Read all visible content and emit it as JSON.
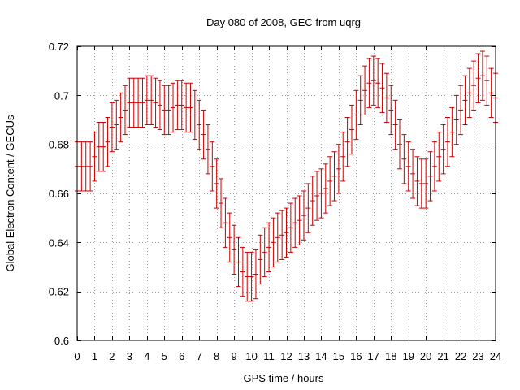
{
  "chart_data": {
    "type": "scatter",
    "title": "Day 080 of 2008, GEC from uqrg",
    "xlabel": "GPS time / hours",
    "ylabel": "Global Electron Content / GECUs",
    "xlim": [
      0,
      24
    ],
    "ylim": [
      0.6,
      0.72
    ],
    "xticks": [
      0,
      1,
      2,
      3,
      4,
      5,
      6,
      7,
      8,
      9,
      10,
      11,
      12,
      13,
      14,
      15,
      16,
      17,
      18,
      19,
      20,
      21,
      22,
      23,
      24
    ],
    "yticks": [
      0.6,
      0.62,
      0.64,
      0.66,
      0.68,
      0.7,
      0.72
    ],
    "ytick_labels": [
      "0.6",
      "0.62",
      "0.64",
      "0.66",
      "0.68",
      "0.7",
      "0.72"
    ],
    "grid": true,
    "legend": "none",
    "error_bar": 0.01,
    "series": [
      {
        "color": "#cc0000",
        "x": [
          0,
          0.25,
          0.5,
          0.75,
          1,
          1.25,
          1.5,
          1.75,
          2,
          2.25,
          2.5,
          2.75,
          3,
          3.25,
          3.5,
          3.75,
          4,
          4.25,
          4.5,
          4.75,
          5,
          5.25,
          5.5,
          5.75,
          6,
          6.25,
          6.5,
          6.75,
          7,
          7.25,
          7.5,
          7.75,
          8,
          8.25,
          8.5,
          8.75,
          9,
          9.25,
          9.5,
          9.75,
          10,
          10.25,
          10.5,
          10.75,
          11,
          11.25,
          11.5,
          11.75,
          12,
          12.25,
          12.5,
          12.75,
          13,
          13.25,
          13.5,
          13.75,
          14,
          14.25,
          14.5,
          14.75,
          15,
          15.25,
          15.5,
          15.75,
          16,
          16.25,
          16.5,
          16.75,
          17,
          17.25,
          17.5,
          17.75,
          18,
          18.25,
          18.5,
          18.75,
          19,
          19.25,
          19.5,
          19.75,
          20,
          20.25,
          20.5,
          20.75,
          21,
          21.25,
          21.5,
          21.75,
          22,
          22.25,
          22.5,
          22.75,
          23,
          23.25,
          23.5,
          23.75,
          24
        ],
        "y": [
          0.671,
          0.671,
          0.671,
          0.671,
          0.675,
          0.679,
          0.679,
          0.681,
          0.687,
          0.688,
          0.691,
          0.694,
          0.697,
          0.697,
          0.697,
          0.697,
          0.698,
          0.698,
          0.697,
          0.696,
          0.694,
          0.694,
          0.695,
          0.696,
          0.696,
          0.695,
          0.695,
          0.692,
          0.688,
          0.684,
          0.678,
          0.671,
          0.664,
          0.656,
          0.648,
          0.642,
          0.637,
          0.632,
          0.628,
          0.626,
          0.626,
          0.627,
          0.633,
          0.636,
          0.638,
          0.64,
          0.642,
          0.643,
          0.644,
          0.646,
          0.648,
          0.649,
          0.651,
          0.654,
          0.657,
          0.659,
          0.66,
          0.662,
          0.665,
          0.667,
          0.67,
          0.675,
          0.681,
          0.686,
          0.692,
          0.698,
          0.702,
          0.705,
          0.706,
          0.705,
          0.703,
          0.699,
          0.694,
          0.688,
          0.68,
          0.674,
          0.671,
          0.668,
          0.665,
          0.664,
          0.664,
          0.667,
          0.671,
          0.675,
          0.678,
          0.681,
          0.685,
          0.69,
          0.694,
          0.698,
          0.701,
          0.704,
          0.707,
          0.708,
          0.706,
          0.701,
          0.699
        ]
      }
    ]
  }
}
